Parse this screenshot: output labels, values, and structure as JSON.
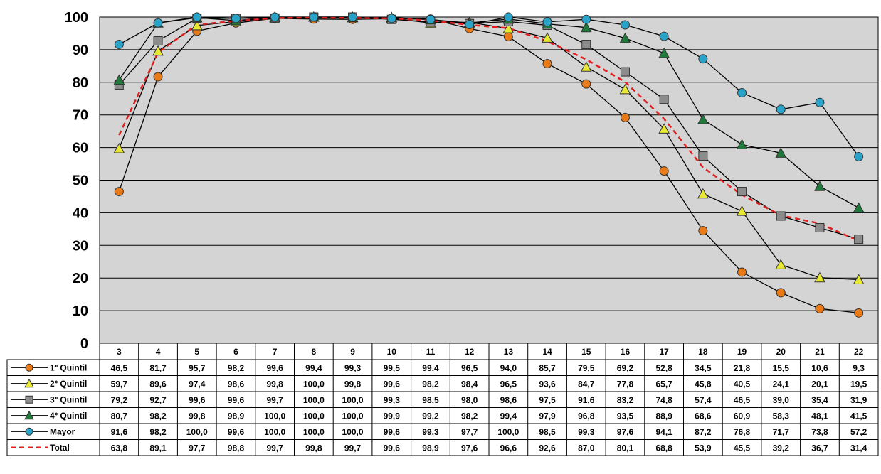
{
  "chart_data": {
    "type": "line",
    "title": "",
    "xlabel": "",
    "ylabel": "",
    "ylim": [
      0,
      100
    ],
    "yticks": [
      "0",
      "10",
      "20",
      "30",
      "40",
      "50",
      "60",
      "70",
      "80",
      "90",
      "100"
    ],
    "grid": true,
    "legend": "data-table-left",
    "categories": [
      "3",
      "4",
      "5",
      "6",
      "7",
      "8",
      "9",
      "10",
      "11",
      "12",
      "13",
      "14",
      "15",
      "16",
      "17",
      "18",
      "19",
      "20",
      "21",
      "22"
    ],
    "series": [
      {
        "name": "1º Quintil",
        "color": "#e97a17",
        "marker": "circle",
        "values": [
          46.5,
          81.7,
          95.7,
          98.2,
          99.6,
          99.4,
          99.3,
          99.5,
          99.4,
          96.5,
          94.0,
          85.7,
          79.5,
          69.2,
          52.8,
          34.5,
          21.8,
          15.5,
          10.6,
          9.3
        ],
        "labels": [
          "46,5",
          "81,7",
          "95,7",
          "98,2",
          "99,6",
          "99,4",
          "99,3",
          "99,5",
          "99,4",
          "96,5",
          "94,0",
          "85,7",
          "79,5",
          "69,2",
          "52,8",
          "34,5",
          "21,8",
          "15,5",
          "10,6",
          "9,3"
        ]
      },
      {
        "name": "2º Quintil",
        "color": "#e8e832",
        "marker": "triangle",
        "values": [
          59.7,
          89.6,
          97.4,
          98.6,
          99.8,
          100.0,
          99.8,
          99.6,
          98.2,
          98.4,
          96.5,
          93.6,
          84.7,
          77.8,
          65.7,
          45.8,
          40.5,
          24.1,
          20.1,
          19.5
        ],
        "labels": [
          "59,7",
          "89,6",
          "97,4",
          "98,6",
          "99,8",
          "100,0",
          "99,8",
          "99,6",
          "98,2",
          "98,4",
          "96,5",
          "93,6",
          "84,7",
          "77,8",
          "65,7",
          "45,8",
          "40,5",
          "24,1",
          "20,1",
          "19,5"
        ]
      },
      {
        "name": "3º Quintil",
        "color": "#8c8c8c",
        "marker": "square",
        "values": [
          79.2,
          92.7,
          99.6,
          99.6,
          99.7,
          100.0,
          100.0,
          99.3,
          98.5,
          98.0,
          98.6,
          97.5,
          91.6,
          83.2,
          74.8,
          57.4,
          46.5,
          39.0,
          35.4,
          31.9
        ],
        "labels": [
          "79,2",
          "92,7",
          "99,6",
          "99,6",
          "99,7",
          "100,0",
          "100,0",
          "99,3",
          "98,5",
          "98,0",
          "98,6",
          "97,5",
          "91,6",
          "83,2",
          "74,8",
          "57,4",
          "46,5",
          "39,0",
          "35,4",
          "31,9"
        ]
      },
      {
        "name": "4º Quintil",
        "color": "#1f7a3c",
        "marker": "triangle",
        "values": [
          80.7,
          98.2,
          99.8,
          98.9,
          100.0,
          100.0,
          100.0,
          99.9,
          99.2,
          98.2,
          99.4,
          97.9,
          96.8,
          93.5,
          88.9,
          68.6,
          60.9,
          58.3,
          48.1,
          41.5
        ],
        "labels": [
          "80,7",
          "98,2",
          "99,8",
          "98,9",
          "100,0",
          "100,0",
          "100,0",
          "99,9",
          "99,2",
          "98,2",
          "99,4",
          "97,9",
          "96,8",
          "93,5",
          "88,9",
          "68,6",
          "60,9",
          "58,3",
          "48,1",
          "41,5"
        ]
      },
      {
        "name": "Mayor",
        "color": "#2aa3c9",
        "marker": "circle",
        "values": [
          91.6,
          98.2,
          100.0,
          99.6,
          100.0,
          100.0,
          100.0,
          99.6,
          99.3,
          97.7,
          100.0,
          98.5,
          99.3,
          97.6,
          94.1,
          87.2,
          76.8,
          71.7,
          73.8,
          57.2
        ],
        "labels": [
          "91,6",
          "98,2",
          "100,0",
          "99,6",
          "100,0",
          "100,0",
          "100,0",
          "99,6",
          "99,3",
          "97,7",
          "100,0",
          "98,5",
          "99,3",
          "97,6",
          "94,1",
          "87,2",
          "76,8",
          "71,7",
          "73,8",
          "57,2"
        ]
      },
      {
        "name": "Total",
        "color": "#e02020",
        "marker": "none",
        "dashed": true,
        "values": [
          63.8,
          89.1,
          97.7,
          98.8,
          99.7,
          99.8,
          99.7,
          99.6,
          98.9,
          97.6,
          96.6,
          92.6,
          87.0,
          80.1,
          68.8,
          53.9,
          45.5,
          39.2,
          36.7,
          31.4
        ],
        "labels": [
          "63,8",
          "89,1",
          "97,7",
          "98,8",
          "99,7",
          "99,8",
          "99,7",
          "99,6",
          "98,9",
          "97,6",
          "96,6",
          "92,6",
          "87,0",
          "80,1",
          "68,8",
          "53,9",
          "45,5",
          "39,2",
          "36,7",
          "31,4"
        ]
      }
    ]
  }
}
